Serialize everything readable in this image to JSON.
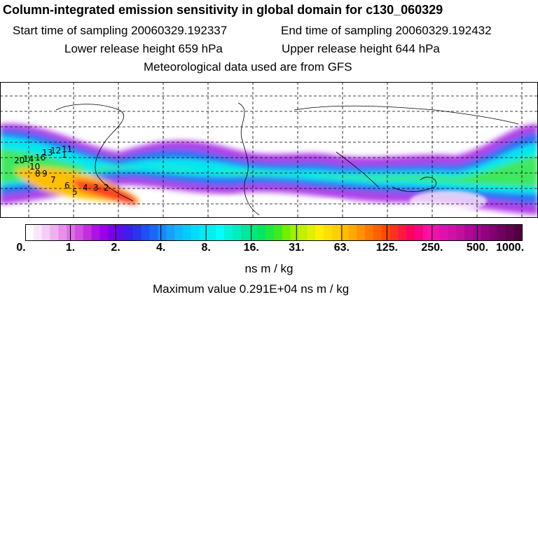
{
  "title": "Column-integrated emission sensitivity in global domain for c130_060329",
  "start_time": "Start time of sampling 20060329.192337",
  "end_time": "End time of sampling 20060329.192432",
  "lower_height": "Lower release height  659 hPa",
  "upper_height": "Upper release height  644 hPa",
  "met_data": "Meteorological data used are from GFS",
  "colorbar": {
    "ticks": [
      "0.",
      "1.",
      "2.",
      "4.",
      "8.",
      "16.",
      "31.",
      "63.",
      "125.",
      "250.",
      "500.",
      "1000."
    ],
    "units": "ns m / kg",
    "colors": [
      "#ffffff",
      "#fbe6fb",
      "#f5cdf5",
      "#eeb0ef",
      "#e690ea",
      "#dc70e4",
      "#d04ee0",
      "#c22ee0",
      "#ae10e6",
      "#9a00e8",
      "#7a00e8",
      "#5a10e8",
      "#3a20ec",
      "#2a34f0",
      "#2050f4",
      "#1a68f8",
      "#1888fa",
      "#18a0fb",
      "#10b8fc",
      "#00ccfe",
      "#00dcfa",
      "#00eaf0",
      "#00f0f0",
      "#00ffff",
      "#00f4d8",
      "#00eec0",
      "#00e8a0",
      "#00e880",
      "#00e860",
      "#20e840",
      "#40e820",
      "#70f000",
      "#a0f000",
      "#c0f000",
      "#e0f000",
      "#fff000",
      "#ffe000",
      "#ffd000",
      "#ffbc00",
      "#ffa800",
      "#ff9000",
      "#ff7800",
      "#ff6000",
      "#ff4800",
      "#ff3020",
      "#ff1840",
      "#ff0060",
      "#ff0080",
      "#ff10a0",
      "#f010b0",
      "#e010b0",
      "#d010a8",
      "#c010a0",
      "#b00898",
      "#a00890",
      "#900080",
      "#800070",
      "#700060",
      "#600050",
      "#500040"
    ]
  },
  "max_value": "Maximum value  0.291E+04 ns m / kg",
  "map_labels": [
    "20",
    "14",
    "16",
    "13",
    "12",
    "11",
    "10",
    "9",
    "8",
    "7",
    "6",
    "5",
    "4",
    "3",
    "2",
    "1"
  ]
}
